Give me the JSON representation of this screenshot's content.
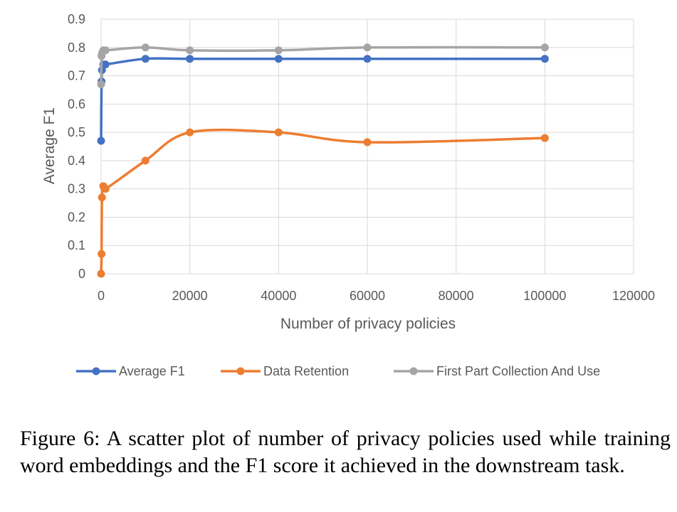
{
  "chart_data": {
    "type": "line",
    "xlabel": "Number of privacy policies",
    "ylabel": "Average F1",
    "xlim": [
      0,
      120000
    ],
    "ylim": [
      0,
      0.9
    ],
    "xticks": [
      "0",
      "20000",
      "40000",
      "60000",
      "80000",
      "100000",
      "120000"
    ],
    "yticks": [
      "0",
      "0.1",
      "0.2",
      "0.3",
      "0.4",
      "0.5",
      "0.6",
      "0.7",
      "0.8",
      "0.9"
    ],
    "grid": true,
    "legend_position": "bottom",
    "series": [
      {
        "name": "Average F1",
        "color": "#4472C4",
        "x": [
          0,
          100,
          200,
          500,
          1000,
          10000,
          20000,
          40000,
          60000,
          100000
        ],
        "y": [
          0.47,
          0.68,
          0.72,
          0.74,
          0.74,
          0.76,
          0.76,
          0.76,
          0.76,
          0.76
        ]
      },
      {
        "name": "Data Retention",
        "color": "#ED7D31",
        "x": [
          0,
          100,
          200,
          500,
          1000,
          10000,
          20000,
          40000,
          60000,
          100000
        ],
        "y": [
          0,
          0.07,
          0.27,
          0.31,
          0.3,
          0.4,
          0.5,
          0.5,
          0.465,
          0.48
        ]
      },
      {
        "name": "First Part Collection And Use",
        "color": "#A5A5A5",
        "x": [
          0,
          100,
          200,
          500,
          1000,
          10000,
          20000,
          40000,
          60000,
          100000
        ],
        "y": [
          0.67,
          0.77,
          0.78,
          0.79,
          0.79,
          0.8,
          0.79,
          0.79,
          0.8,
          0.8
        ]
      }
    ]
  },
  "caption": "Figure 6: A scatter plot of number of privacy policies used while training word embeddings and the F1 score it achieved in the downstream task."
}
